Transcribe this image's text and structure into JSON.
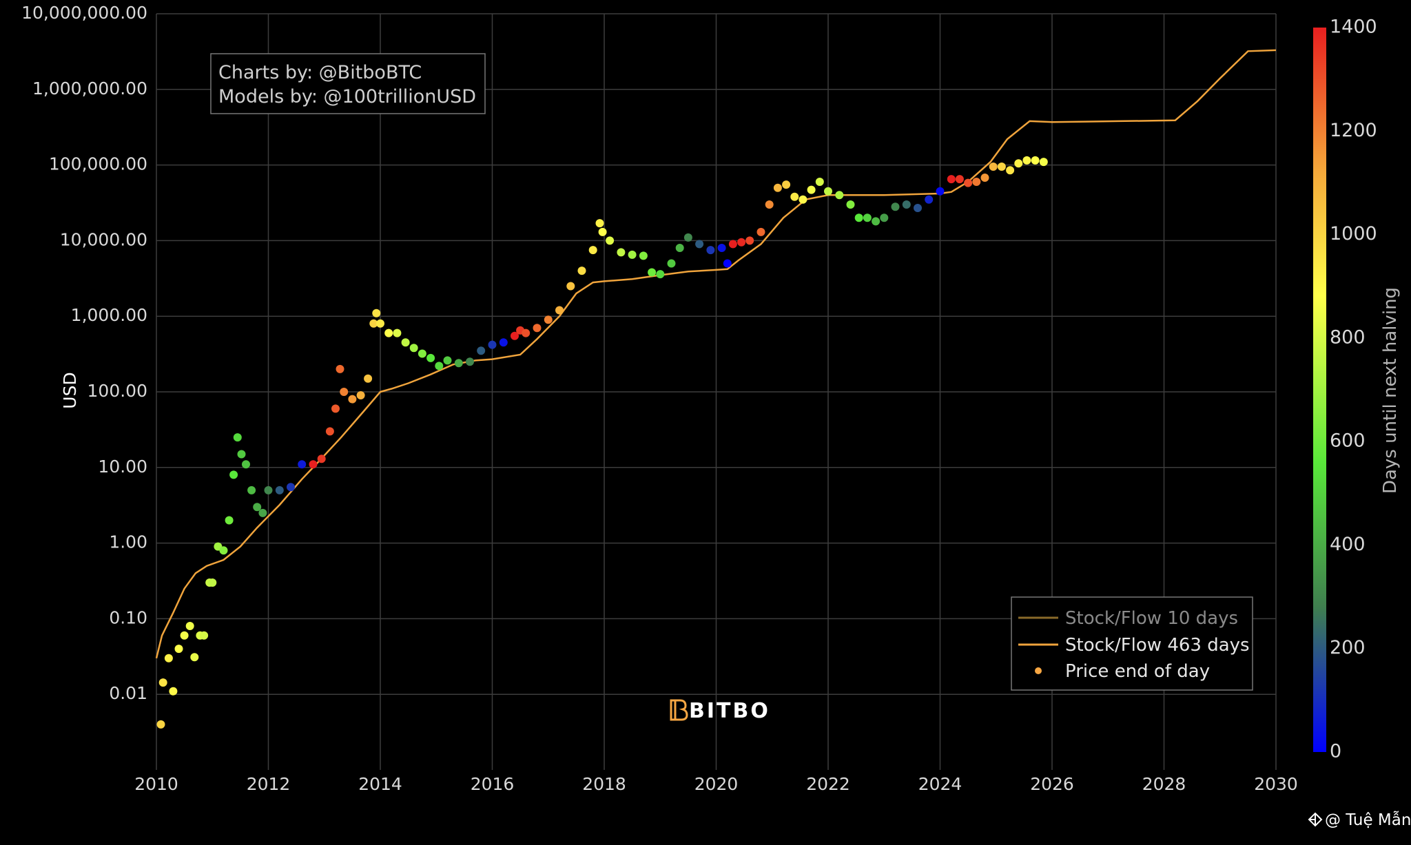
{
  "chart_data": {
    "type": "scatter",
    "title": "",
    "ylabel": "USD",
    "y_scale": "log",
    "y_range": [
      0.001,
      10000000
    ],
    "x_range": [
      2010,
      2030
    ],
    "y_ticks": [
      "10,000,000.00",
      "1,000,000.00",
      "100,000.00",
      "10,000.00",
      "1,000.00",
      "100.00",
      "10.00",
      "1.00",
      "0.10",
      "0.01"
    ],
    "y_tick_values": [
      10000000,
      1000000,
      100000,
      10000,
      1000,
      100,
      10,
      1,
      0.1,
      0.01
    ],
    "x_ticks": [
      "2010",
      "2012",
      "2014",
      "2016",
      "2018",
      "2020",
      "2022",
      "2024",
      "2026",
      "2028",
      "2030"
    ],
    "x_tick_values": [
      2010,
      2012,
      2014,
      2016,
      2018,
      2020,
      2022,
      2024,
      2026,
      2028,
      2030
    ],
    "grid": true,
    "annotation": [
      "Charts by: @BitboBTC",
      "Models by: @100trillionUSD"
    ],
    "colorbar": {
      "title": "Days until next halving",
      "range": [
        0,
        1400
      ],
      "ticks": [
        "1400",
        "1200",
        "1000",
        "800",
        "600",
        "400",
        "200",
        "0"
      ],
      "tick_values": [
        1400,
        1200,
        1000,
        800,
        600,
        400,
        200,
        0
      ],
      "colorscale": [
        "#0000ff",
        "#3f7f4f",
        "#59e83a",
        "#ffff4a",
        "#f5a93a",
        "#e81f1f"
      ]
    },
    "legend": {
      "position": "bottom-right",
      "entries": [
        {
          "label": "Stock/Flow 10 days",
          "kind": "line",
          "color": "#8a6a2a",
          "dimmed": true
        },
        {
          "label": "Stock/Flow 463 days",
          "kind": "line",
          "color": "#f0a43c"
        },
        {
          "label": "Price end of day",
          "kind": "marker",
          "color": "#f7a743"
        }
      ]
    },
    "series": [
      {
        "name": "Stock/Flow 463 days",
        "type": "line",
        "color": "#f0a43c",
        "x": [
          2010.0,
          2010.1,
          2010.3,
          2010.5,
          2010.7,
          2010.9,
          2011.2,
          2011.5,
          2011.8,
          2012.2,
          2012.6,
          2012.9,
          2013.3,
          2013.7,
          2014.0,
          2014.2,
          2014.5,
          2014.9,
          2015.3,
          2015.7,
          2016.0,
          2016.5,
          2016.8,
          2017.2,
          2017.5,
          2017.8,
          2018.0,
          2018.5,
          2019.0,
          2019.5,
          2020.0,
          2020.2,
          2020.4,
          2020.8,
          2021.2,
          2021.6,
          2022.0,
          2022.5,
          2023.0,
          2023.5,
          2024.0,
          2024.2,
          2024.5,
          2024.9,
          2025.2,
          2025.6,
          2026.0,
          2026.6,
          2027.2,
          2027.8,
          2028.2,
          2028.6,
          2029.0,
          2029.5,
          2030.0
        ],
        "y": [
          0.03,
          0.06,
          0.12,
          0.25,
          0.4,
          0.5,
          0.6,
          0.9,
          1.6,
          3.2,
          7,
          12,
          25,
          55,
          100,
          110,
          130,
          170,
          230,
          260,
          270,
          310,
          500,
          1000,
          2000,
          2800,
          2900,
          3100,
          3500,
          3900,
          4100,
          4200,
          5500,
          9000,
          20000,
          35000,
          40000,
          40000,
          40000,
          41000,
          42000,
          44000,
          60000,
          110000,
          220000,
          380000,
          370000,
          375000,
          380000,
          385000,
          390000,
          700000,
          1400000,
          3200000,
          3300000
        ]
      },
      {
        "name": "Price end of day",
        "type": "scatter",
        "colorscale_field": "days_until_halving",
        "x": [
          2010.08,
          2010.12,
          2010.22,
          2010.3,
          2010.4,
          2010.5,
          2010.6,
          2010.68,
          2010.78,
          2010.85,
          2010.95,
          2011.0,
          2011.1,
          2011.2,
          2011.3,
          2011.38,
          2011.45,
          2011.52,
          2011.6,
          2011.7,
          2011.8,
          2011.9,
          2012.0,
          2012.2,
          2012.4,
          2012.6,
          2012.8,
          2012.95,
          2013.1,
          2013.2,
          2013.28,
          2013.35,
          2013.5,
          2013.65,
          2013.78,
          2013.88,
          2013.93,
          2014.0,
          2014.15,
          2014.3,
          2014.45,
          2014.6,
          2014.75,
          2014.9,
          2015.05,
          2015.2,
          2015.4,
          2015.6,
          2015.8,
          2016.0,
          2016.2,
          2016.4,
          2016.5,
          2016.6,
          2016.8,
          2017.0,
          2017.2,
          2017.4,
          2017.6,
          2017.8,
          2017.92,
          2017.97,
          2018.1,
          2018.3,
          2018.5,
          2018.7,
          2018.85,
          2019.0,
          2019.2,
          2019.35,
          2019.5,
          2019.7,
          2019.9,
          2020.1,
          2020.2,
          2020.3,
          2020.45,
          2020.6,
          2020.8,
          2020.95,
          2021.1,
          2021.25,
          2021.4,
          2021.55,
          2021.7,
          2021.85,
          2022.0,
          2022.2,
          2022.4,
          2022.55,
          2022.7,
          2022.85,
          2023.0,
          2023.2,
          2023.4,
          2023.6,
          2023.8,
          2024.0,
          2024.2,
          2024.35,
          2024.5,
          2024.65,
          2024.8,
          2024.95,
          2025.1,
          2025.25,
          2025.4,
          2025.55,
          2025.7,
          2025.85
        ],
        "y": [
          0.004,
          0.0143,
          0.03,
          0.011,
          0.04,
          0.06,
          0.08,
          0.031,
          0.06,
          0.06,
          0.3,
          0.3,
          0.9,
          0.8,
          2,
          8,
          25,
          15,
          11,
          5,
          3,
          2.5,
          5,
          5,
          5.5,
          11,
          11,
          13,
          30,
          60,
          200,
          100,
          80,
          90,
          150,
          800,
          1100,
          800,
          600,
          600,
          450,
          380,
          320,
          280,
          220,
          260,
          240,
          250,
          350,
          420,
          450,
          550,
          650,
          600,
          700,
          900,
          1200,
          2500,
          4000,
          7500,
          17000,
          13000,
          10000,
          7000,
          6500,
          6300,
          3800,
          3600,
          5000,
          8000,
          11000,
          9000,
          7500,
          8000,
          5000,
          9000,
          9500,
          10000,
          13000,
          30000,
          50000,
          55000,
          38000,
          35000,
          47000,
          60000,
          45000,
          40000,
          30000,
          20000,
          20000,
          18000,
          20000,
          28000,
          30000,
          27000,
          35000,
          45000,
          65000,
          65000,
          58000,
          60000,
          68000,
          95000,
          95000,
          85000,
          105000,
          115000,
          115000,
          110000
        ],
        "days_until_halving": [
          1000,
          960,
          920,
          900,
          880,
          860,
          850,
          840,
          820,
          800,
          780,
          760,
          700,
          650,
          600,
          560,
          520,
          480,
          460,
          440,
          400,
          380,
          300,
          200,
          120,
          60,
          1400,
          1350,
          1300,
          1280,
          1250,
          1200,
          1150,
          1100,
          1050,
          1000,
          960,
          940,
          880,
          820,
          760,
          700,
          640,
          560,
          520,
          480,
          400,
          300,
          200,
          120,
          40,
          1420,
          1350,
          1300,
          1250,
          1200,
          1100,
          1050,
          980,
          940,
          920,
          880,
          820,
          760,
          700,
          640,
          600,
          520,
          480,
          420,
          300,
          200,
          120,
          40,
          0,
          1420,
          1380,
          1320,
          1250,
          1180,
          1080,
          1020,
          940,
          900,
          860,
          800,
          760,
          720,
          640,
          560,
          500,
          440,
          360,
          300,
          240,
          180,
          80,
          20,
          1400,
          1360,
          1300,
          1220,
          1160,
          1080,
          1000,
          960,
          920,
          900,
          880,
          860
        ]
      }
    ]
  },
  "logo": {
    "text": "BITBO"
  },
  "watermark": {
    "text": "@ Tuệ Mẫn"
  }
}
